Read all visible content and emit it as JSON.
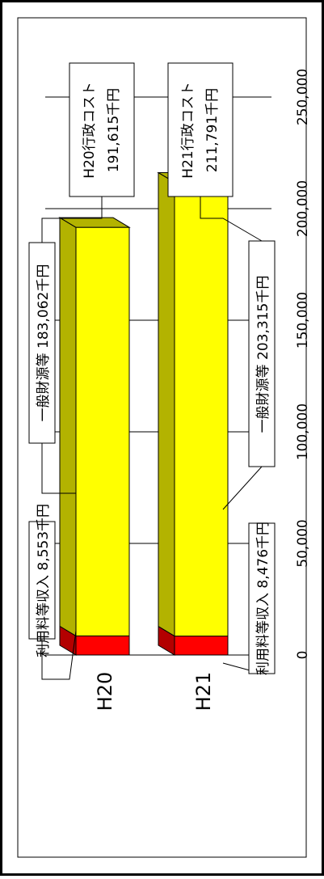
{
  "chart_data": {
    "type": "bar",
    "orientation": "horizontal-stacked-3d",
    "categories": [
      "H20",
      "H21"
    ],
    "series": [
      {
        "name": "利用料等収入",
        "values": [
          8553,
          8476
        ],
        "color": "#ff0000"
      },
      {
        "name": "一般財源等",
        "values": [
          183062,
          203315
        ],
        "color": "#ffff00"
      }
    ],
    "totals": [
      191615,
      211791
    ],
    "xlim": [
      0,
      250000
    ],
    "xticks": [
      0,
      50000,
      100000,
      150000,
      200000,
      250000
    ],
    "tick_labels": [
      "0",
      "50,000",
      "100,000",
      "150,000",
      "200,000",
      "250,000"
    ],
    "grid": true,
    "annotations": {
      "h20_income": "利用料等収入  8,553千円",
      "h20_general": "一般財源等  183,062千円",
      "h20_total": [
        "H20行政コスト",
        "191,615千円"
      ],
      "h21_income": "利用料等収入  8,476千円",
      "h21_general": "一般財源等  203,315千円",
      "h21_total": [
        "H21行政コスト",
        "211,791千円"
      ]
    },
    "colors": {
      "side_yellow": "#b3b300",
      "side_red": "#b30000",
      "outer_border": "#000000"
    }
  }
}
